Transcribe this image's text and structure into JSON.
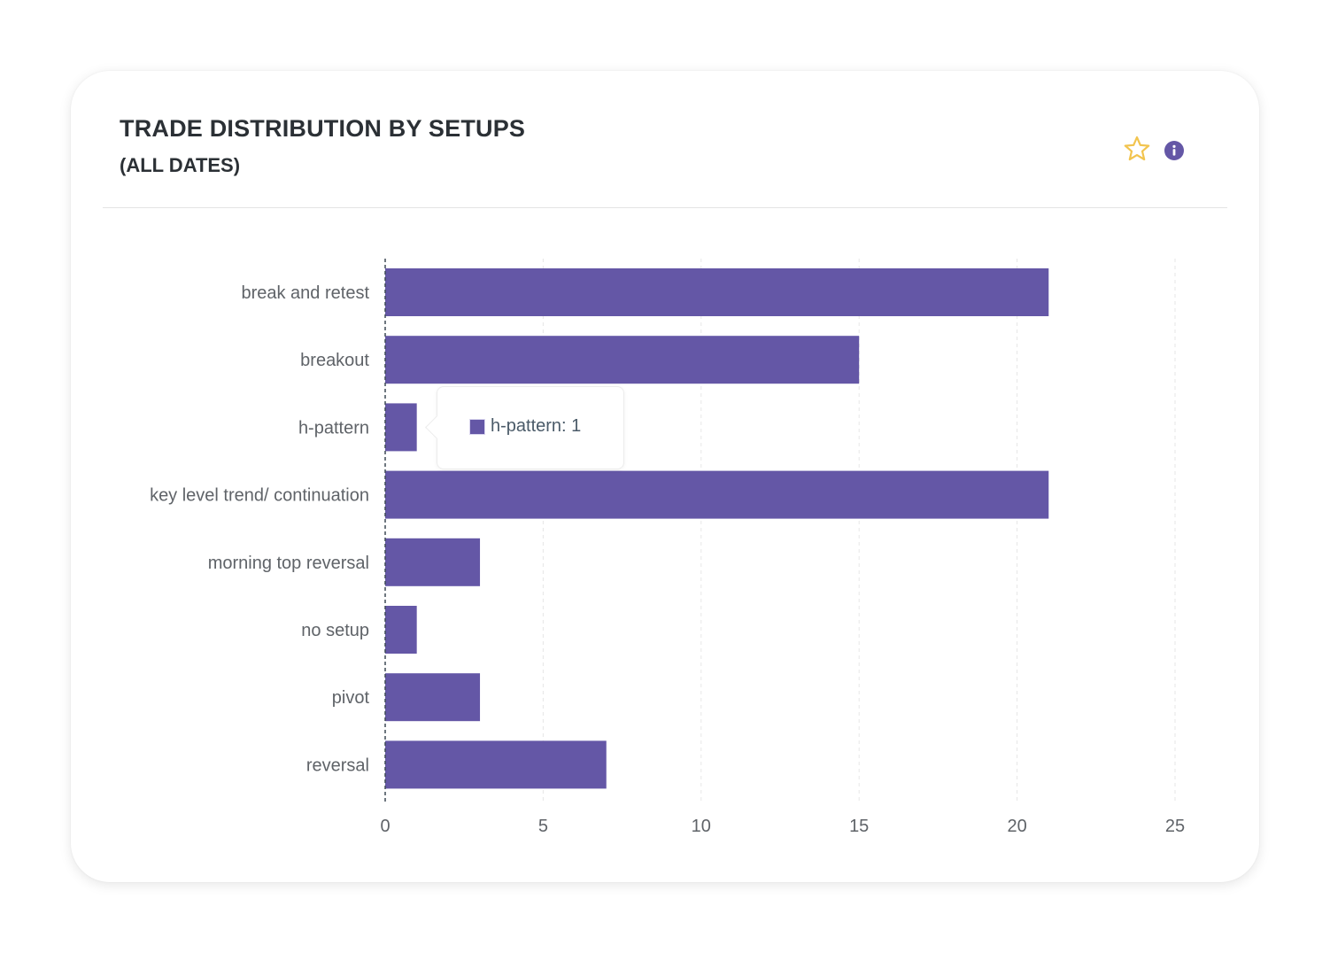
{
  "header": {
    "title": "TRADE DISTRIBUTION BY SETUPS",
    "subtitle": "(ALL DATES)",
    "star_icon": "star-outline-icon",
    "info_icon": "info-icon"
  },
  "colors": {
    "bar": "#6457a6",
    "star": "#f2c44e",
    "info": "#6457a6",
    "grid": "#e6e6e6",
    "axis_line": "#3f4a55",
    "label": "#5f6368"
  },
  "tooltip": {
    "series": "h-pattern",
    "value": 1,
    "text": "h-pattern: 1"
  },
  "chart_data": {
    "type": "bar",
    "orientation": "horizontal",
    "title": "TRADE DISTRIBUTION BY SETUPS",
    "subtitle": "(ALL DATES)",
    "categories": [
      "break and retest",
      "breakout",
      "h-pattern",
      "key level trend/ continuation",
      "morning top reversal",
      "no setup",
      "pivot",
      "reversal"
    ],
    "values": [
      21,
      15,
      1,
      21,
      3,
      1,
      3,
      7
    ],
    "xlim": [
      0,
      25
    ],
    "xticks": [
      0,
      5,
      10,
      15,
      20,
      25
    ],
    "xlabel": "",
    "ylabel": "",
    "grid": true,
    "legend": "none"
  }
}
